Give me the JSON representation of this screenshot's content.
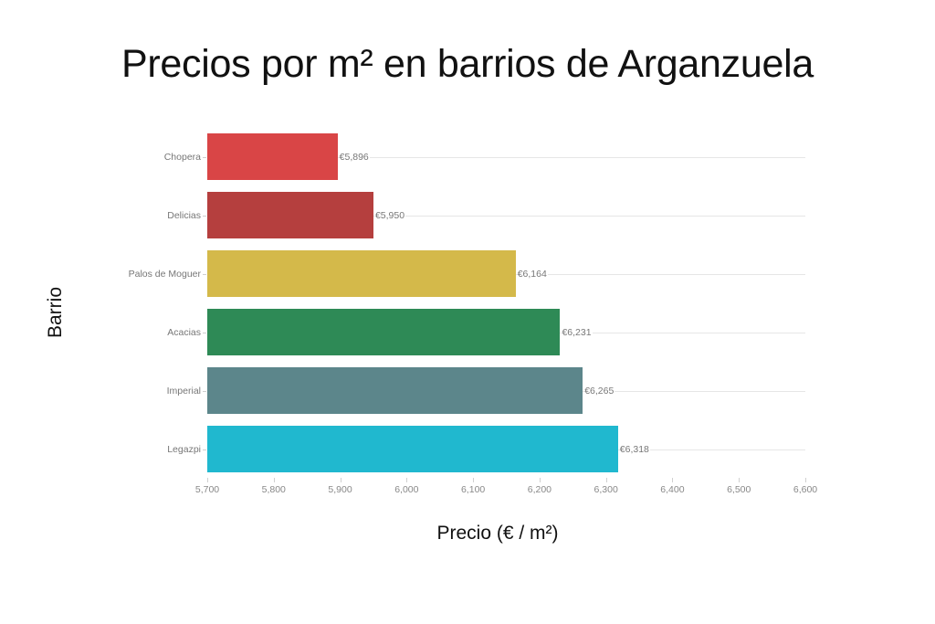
{
  "chart_data": {
    "type": "bar",
    "orientation": "horizontal",
    "title": "Precios por m² en barrios de Arganzuela",
    "xlabel": "Precio (€ / m²)",
    "ylabel": "Barrio",
    "categories": [
      "Chopera",
      "Delicias",
      "Palos de Moguer",
      "Acacias",
      "Imperial",
      "Legazpi"
    ],
    "values": [
      5896,
      5950,
      6164,
      6231,
      6265,
      6318
    ],
    "value_labels": [
      "€5,896",
      "€5,950",
      "€6,164",
      "€6,231",
      "€6,265",
      "€6,318"
    ],
    "colors": [
      "#d94546",
      "#b53f3e",
      "#d4b94a",
      "#2e8a56",
      "#5c868b",
      "#20b8cf"
    ],
    "xlim": [
      5700,
      6600
    ],
    "xticks": [
      5700,
      5800,
      5900,
      6000,
      6100,
      6200,
      6300,
      6400,
      6500,
      6600
    ],
    "xtick_labels": [
      "5,700",
      "5,800",
      "5,900",
      "6,000",
      "6,100",
      "6,200",
      "6,300",
      "6,400",
      "6,500",
      "6,600"
    ],
    "grid": true,
    "legend": null
  }
}
